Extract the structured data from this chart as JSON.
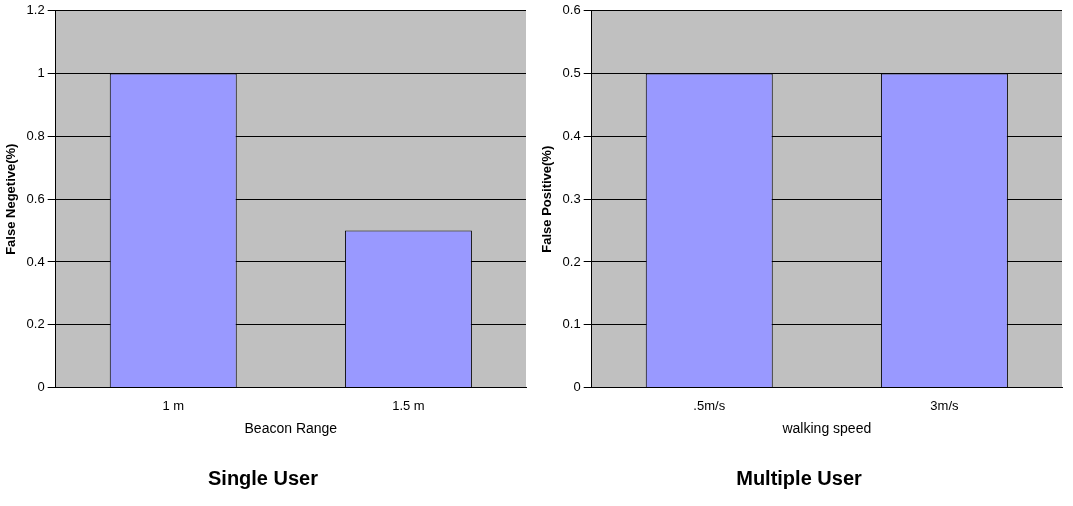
{
  "chart_data": [
    {
      "type": "bar",
      "title": "Single User",
      "xlabel": "Beacon Range",
      "ylabel": "False Negetive(%)",
      "categories": [
        "1 m",
        "1.5 m"
      ],
      "values": [
        1,
        0.5
      ],
      "color": "#9999ff",
      "ylim": [
        0,
        1.2
      ],
      "yticks": [
        0,
        0.2,
        0.4,
        0.6,
        0.8,
        1,
        1.2
      ],
      "grid": "y"
    },
    {
      "type": "bar",
      "title": "Multiple User",
      "xlabel": "walking speed",
      "ylabel": "False Positive(%)",
      "categories": [
        ".5m/s",
        "3m/s"
      ],
      "values": [
        0.5,
        0.5
      ],
      "color": "#9999ff",
      "ylim": [
        0,
        0.6
      ],
      "yticks": [
        0,
        0.1,
        0.2,
        0.3,
        0.4,
        0.5,
        0.6
      ],
      "grid": "y"
    }
  ]
}
